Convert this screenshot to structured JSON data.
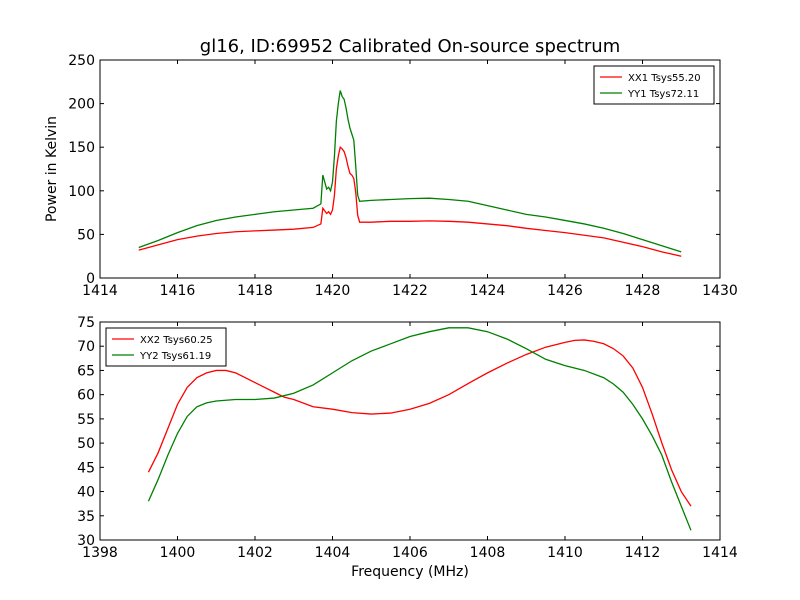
{
  "figure": {
    "title": "gl16, ID:69952 Calibrated On-source spectrum"
  },
  "chart_data": [
    {
      "type": "line",
      "title": "gl16, ID:69952 Calibrated On-source spectrum",
      "xlabel": "",
      "ylabel": "Power in Kelvin",
      "xlim": [
        1414,
        1430
      ],
      "ylim": [
        0,
        250
      ],
      "xticks": [
        1414,
        1416,
        1418,
        1420,
        1422,
        1424,
        1426,
        1428,
        1430
      ],
      "yticks": [
        0,
        50,
        100,
        150,
        200,
        250
      ],
      "grid": false,
      "legend_position": "top-right",
      "series": [
        {
          "name": "XX1 Tsys55.20",
          "color": "#ff0000",
          "x": [
            1415.0,
            1415.5,
            1416.0,
            1416.5,
            1417.0,
            1417.5,
            1418.0,
            1418.5,
            1419.0,
            1419.5,
            1419.7,
            1419.75,
            1419.8,
            1419.85,
            1419.9,
            1419.95,
            1420.0,
            1420.05,
            1420.1,
            1420.15,
            1420.2,
            1420.25,
            1420.3,
            1420.35,
            1420.4,
            1420.45,
            1420.5,
            1420.55,
            1420.6,
            1420.65,
            1420.7,
            1421.0,
            1421.5,
            1422.0,
            1422.5,
            1423.0,
            1423.5,
            1424.0,
            1424.5,
            1425.0,
            1425.5,
            1426.0,
            1426.5,
            1427.0,
            1427.5,
            1428.0,
            1428.5,
            1429.0
          ],
          "values": [
            32,
            38,
            44,
            48,
            51,
            53,
            54,
            55,
            56,
            58,
            62,
            80,
            77,
            74,
            76,
            73,
            78,
            95,
            125,
            140,
            150,
            148,
            145,
            138,
            128,
            120,
            118,
            114,
            98,
            72,
            64,
            64,
            65,
            65,
            65.5,
            65,
            64,
            62,
            60,
            57,
            54.5,
            52,
            49,
            46,
            41,
            36,
            30,
            25
          ]
        },
        {
          "name": "YY1 Tsys72.11",
          "color": "#008000",
          "x": [
            1415.0,
            1415.5,
            1416.0,
            1416.5,
            1417.0,
            1417.5,
            1418.0,
            1418.5,
            1419.0,
            1419.5,
            1419.7,
            1419.75,
            1419.8,
            1419.85,
            1419.9,
            1419.95,
            1420.0,
            1420.05,
            1420.1,
            1420.15,
            1420.2,
            1420.25,
            1420.3,
            1420.35,
            1420.4,
            1420.45,
            1420.5,
            1420.55,
            1420.6,
            1420.65,
            1420.7,
            1421.0,
            1421.5,
            1422.0,
            1422.5,
            1423.0,
            1423.5,
            1424.0,
            1424.5,
            1425.0,
            1425.5,
            1426.0,
            1426.5,
            1427.0,
            1427.5,
            1428.0,
            1428.5,
            1429.0
          ],
          "values": [
            35,
            43,
            52,
            60,
            66,
            70,
            73,
            76,
            78,
            80,
            85,
            118,
            110,
            102,
            104,
            100,
            110,
            140,
            180,
            200,
            215,
            208,
            205,
            195,
            182,
            172,
            165,
            158,
            128,
            95,
            88,
            89,
            90,
            91,
            91.5,
            90,
            88,
            83,
            78,
            73,
            70,
            66,
            62,
            57,
            51,
            44,
            37,
            30
          ]
        }
      ]
    },
    {
      "type": "line",
      "title": "",
      "xlabel": "Frequency (MHz)",
      "ylabel": "",
      "xlim": [
        1398,
        1414
      ],
      "ylim": [
        30,
        75
      ],
      "xticks": [
        1398,
        1400,
        1402,
        1404,
        1406,
        1408,
        1410,
        1412,
        1414
      ],
      "yticks": [
        30,
        35,
        40,
        45,
        50,
        55,
        60,
        65,
        70,
        75
      ],
      "grid": false,
      "legend_position": "top-left",
      "series": [
        {
          "name": "XX2 Tsys60.25",
          "color": "#ff0000",
          "x": [
            1399.25,
            1399.5,
            1399.75,
            1400.0,
            1400.25,
            1400.5,
            1400.75,
            1401.0,
            1401.25,
            1401.5,
            1401.75,
            1402.0,
            1402.25,
            1402.5,
            1402.75,
            1403.0,
            1403.5,
            1404.0,
            1404.5,
            1405.0,
            1405.5,
            1406.0,
            1406.5,
            1407.0,
            1407.5,
            1408.0,
            1408.5,
            1409.0,
            1409.5,
            1410.0,
            1410.25,
            1410.5,
            1410.75,
            1411.0,
            1411.25,
            1411.5,
            1411.75,
            1412.0,
            1412.25,
            1412.5,
            1412.75,
            1413.0,
            1413.25
          ],
          "values": [
            44,
            48,
            53,
            58,
            61.5,
            63.5,
            64.5,
            65,
            65,
            64.5,
            63.5,
            62.5,
            61.5,
            60.5,
            59.5,
            59,
            57.5,
            57,
            56.3,
            56,
            56.2,
            57,
            58.2,
            60,
            62.3,
            64.5,
            66.5,
            68.3,
            69.8,
            70.8,
            71.2,
            71.3,
            71,
            70.5,
            69.5,
            68,
            65.5,
            61.5,
            56,
            50,
            44.5,
            40,
            37
          ]
        },
        {
          "name": "YY2 Tsys61.19",
          "color": "#008000",
          "x": [
            1399.25,
            1399.5,
            1399.75,
            1400.0,
            1400.25,
            1400.5,
            1400.75,
            1401.0,
            1401.5,
            1402.0,
            1402.5,
            1403.0,
            1403.5,
            1404.0,
            1404.5,
            1405.0,
            1405.5,
            1406.0,
            1406.5,
            1407.0,
            1407.5,
            1408.0,
            1408.5,
            1409.0,
            1409.5,
            1410.0,
            1410.5,
            1411.0,
            1411.25,
            1411.5,
            1411.75,
            1412.0,
            1412.25,
            1412.5,
            1412.75,
            1413.0,
            1413.25
          ],
          "values": [
            38,
            42.5,
            47.5,
            52,
            55.5,
            57.5,
            58.3,
            58.7,
            59,
            59,
            59.3,
            60.3,
            62,
            64.5,
            67,
            69,
            70.5,
            72,
            73,
            73.8,
            73.8,
            73,
            71.5,
            69.5,
            67.3,
            66,
            65,
            63.5,
            62.2,
            60.5,
            58,
            55,
            51.5,
            47.5,
            42,
            37,
            32
          ]
        }
      ]
    }
  ]
}
